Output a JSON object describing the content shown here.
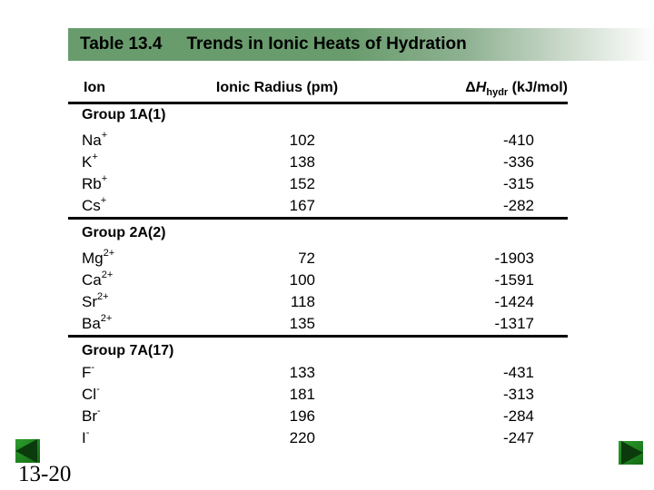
{
  "title_bar": {
    "table_label": "Table 13.4",
    "title": "Trends in Ionic Heats of Hydration"
  },
  "table": {
    "headers": {
      "ion": "Ion",
      "radius": "Ionic Radius (pm)",
      "dh_delta": "Δ",
      "dh_symbol": "H",
      "dh_subscript": "hydr",
      "dh_units": " (kJ/mol)"
    },
    "groups": [
      {
        "label": "Group 1A(1)",
        "rows": [
          {
            "symbol": "Na",
            "charge": "+",
            "radius": "102",
            "dh": "-410"
          },
          {
            "symbol": "K",
            "charge": "+",
            "radius": "138",
            "dh": "-336"
          },
          {
            "symbol": "Rb",
            "charge": "+",
            "radius": "152",
            "dh": "-315"
          },
          {
            "symbol": "Cs",
            "charge": "+",
            "radius": "167",
            "dh": "-282"
          }
        ]
      },
      {
        "label": "Group 2A(2)",
        "rows": [
          {
            "symbol": "Mg",
            "charge": "2+",
            "radius": "72",
            "dh": "-1903"
          },
          {
            "symbol": "Ca",
            "charge": "2+",
            "radius": "100",
            "dh": "-1591"
          },
          {
            "symbol": "Sr",
            "charge": "2+",
            "radius": "118",
            "dh": "-1424"
          },
          {
            "symbol": "Ba",
            "charge": "2+",
            "radius": "135",
            "dh": "-1317"
          }
        ]
      },
      {
        "label": "Group 7A(17)",
        "rows": [
          {
            "symbol": "F",
            "charge": "-",
            "radius": "133",
            "dh": "-431"
          },
          {
            "symbol": "Cl",
            "charge": "-",
            "radius": "181",
            "dh": "-313"
          },
          {
            "symbol": "Br",
            "charge": "-",
            "radius": "196",
            "dh": "-284"
          },
          {
            "symbol": "I",
            "charge": "-",
            "radius": "220",
            "dh": "-247"
          }
        ]
      }
    ]
  },
  "footer": {
    "page_label": "13-20"
  },
  "colors": {
    "title_bar_green": "#699c6d",
    "nav_square_green": "#1e8220",
    "nav_arrow_dark_green": "#0b3b0c",
    "rule_black": "#000000"
  }
}
